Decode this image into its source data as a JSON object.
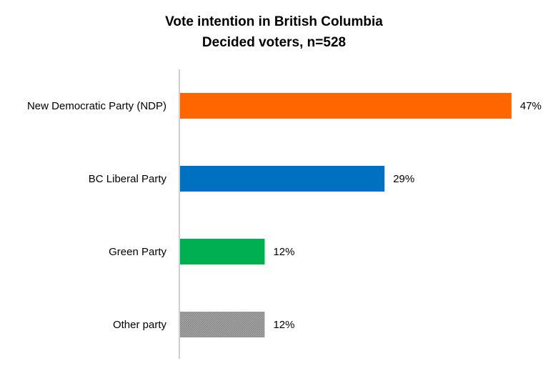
{
  "chart_data": {
    "type": "bar",
    "orientation": "horizontal",
    "title": "Vote intention in British Columbia",
    "subtitle": "Decided voters, n=528",
    "categories": [
      "New Democratic Party (NDP)",
      "BC Liberal Party",
      "Green Party",
      "Other party"
    ],
    "values": [
      47,
      29,
      12,
      12
    ],
    "data_labels": [
      "47%",
      "29%",
      "12%",
      "12%"
    ],
    "colors": [
      "#ff6600",
      "#0070c0",
      "#00b050",
      "#8c8c8c"
    ],
    "value_unit": "%",
    "xlim": [
      0,
      50
    ],
    "axis_color": "#bfbfbf",
    "grid": false,
    "legend": "none"
  }
}
